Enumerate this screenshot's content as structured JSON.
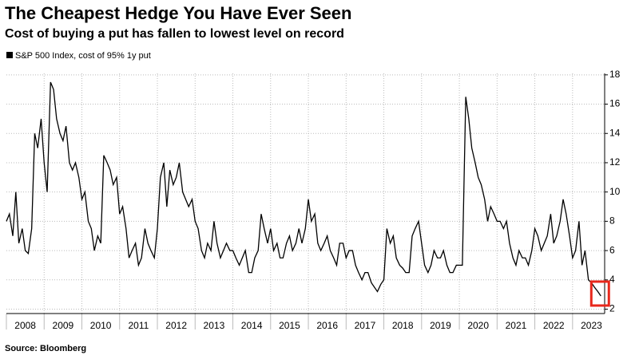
{
  "chart_data": {
    "type": "line",
    "title": "The Cheapest Hedge You Have Ever Seen",
    "subtitle": "Cost of buying a put has fallen to lowest level on record",
    "source": "Source: Bloomberg",
    "x": [
      2008.0,
      2008.08,
      2008.17,
      2008.25,
      2008.33,
      2008.42,
      2008.5,
      2008.58,
      2008.67,
      2008.75,
      2008.83,
      2008.92,
      2009.0,
      2009.08,
      2009.17,
      2009.25,
      2009.33,
      2009.42,
      2009.5,
      2009.58,
      2009.67,
      2009.75,
      2009.83,
      2009.92,
      2010.0,
      2010.08,
      2010.17,
      2010.25,
      2010.33,
      2010.42,
      2010.5,
      2010.58,
      2010.67,
      2010.75,
      2010.83,
      2010.92,
      2011.0,
      2011.08,
      2011.17,
      2011.25,
      2011.33,
      2011.42,
      2011.5,
      2011.58,
      2011.67,
      2011.75,
      2011.83,
      2011.92,
      2012.0,
      2012.08,
      2012.17,
      2012.25,
      2012.33,
      2012.42,
      2012.5,
      2012.58,
      2012.67,
      2012.75,
      2012.83,
      2012.92,
      2013.0,
      2013.08,
      2013.17,
      2013.25,
      2013.33,
      2013.42,
      2013.5,
      2013.58,
      2013.67,
      2013.75,
      2013.83,
      2013.92,
      2014.0,
      2014.08,
      2014.17,
      2014.25,
      2014.33,
      2014.42,
      2014.5,
      2014.58,
      2014.67,
      2014.75,
      2014.83,
      2014.92,
      2015.0,
      2015.08,
      2015.17,
      2015.25,
      2015.33,
      2015.42,
      2015.5,
      2015.58,
      2015.67,
      2015.75,
      2015.83,
      2015.92,
      2016.0,
      2016.08,
      2016.17,
      2016.25,
      2016.33,
      2016.42,
      2016.5,
      2016.58,
      2016.67,
      2016.75,
      2016.83,
      2016.92,
      2017.0,
      2017.08,
      2017.17,
      2017.25,
      2017.33,
      2017.42,
      2017.5,
      2017.58,
      2017.67,
      2017.75,
      2017.83,
      2017.92,
      2018.0,
      2018.08,
      2018.17,
      2018.25,
      2018.33,
      2018.42,
      2018.5,
      2018.58,
      2018.67,
      2018.75,
      2018.83,
      2018.92,
      2019.0,
      2019.08,
      2019.17,
      2019.25,
      2019.33,
      2019.42,
      2019.5,
      2019.58,
      2019.67,
      2019.75,
      2019.83,
      2019.92,
      2020.0,
      2020.08,
      2020.17,
      2020.25,
      2020.33,
      2020.42,
      2020.5,
      2020.58,
      2020.67,
      2020.75,
      2020.83,
      2020.92,
      2021.0,
      2021.08,
      2021.17,
      2021.25,
      2021.33,
      2021.42,
      2021.5,
      2021.58,
      2021.67,
      2021.75,
      2021.83,
      2021.92,
      2022.0,
      2022.08,
      2022.17,
      2022.25,
      2022.33,
      2022.42,
      2022.5,
      2022.58,
      2022.67,
      2022.75,
      2022.83,
      2022.92,
      2023.0,
      2023.08,
      2023.17,
      2023.25,
      2023.33,
      2023.42,
      2023.5,
      2023.58,
      2023.67,
      2023.75
    ],
    "series": [
      {
        "name": "S&P 500 Index, cost of 95% 1y put",
        "color": "#000000",
        "values": [
          8.0,
          8.5,
          7.0,
          10.0,
          6.5,
          7.5,
          6.0,
          5.8,
          7.5,
          14.0,
          13.0,
          15.0,
          12.0,
          10.0,
          17.5,
          17.0,
          15.0,
          14.0,
          13.5,
          14.5,
          12.0,
          11.5,
          12.0,
          11.0,
          9.5,
          10.0,
          8.0,
          7.5,
          6.0,
          7.0,
          6.5,
          12.5,
          12.0,
          11.5,
          10.5,
          11.0,
          8.5,
          9.0,
          7.5,
          5.5,
          6.0,
          6.5,
          5.0,
          5.5,
          7.5,
          6.5,
          6.0,
          5.5,
          7.5,
          11.0,
          12.0,
          9.0,
          11.5,
          10.5,
          11.0,
          12.0,
          10.0,
          9.5,
          9.0,
          9.5,
          8.0,
          7.5,
          6.0,
          5.5,
          6.5,
          6.0,
          8.0,
          6.5,
          5.5,
          6.0,
          6.5,
          6.0,
          6.0,
          5.5,
          5.0,
          5.5,
          6.0,
          4.5,
          4.5,
          5.5,
          6.0,
          8.5,
          7.5,
          6.5,
          7.5,
          6.0,
          6.5,
          5.5,
          5.5,
          6.5,
          7.0,
          6.0,
          6.5,
          7.5,
          6.5,
          7.5,
          9.5,
          8.0,
          8.5,
          6.5,
          6.0,
          6.5,
          7.0,
          6.0,
          5.5,
          5.0,
          6.5,
          6.5,
          5.5,
          6.0,
          6.0,
          5.0,
          4.5,
          4.0,
          4.5,
          4.5,
          3.8,
          3.5,
          3.2,
          3.7,
          4.0,
          7.5,
          6.5,
          7.0,
          5.5,
          5.0,
          4.8,
          4.5,
          4.5,
          7.0,
          7.5,
          8.0,
          6.5,
          5.0,
          4.5,
          5.0,
          6.0,
          5.5,
          5.5,
          6.0,
          5.0,
          4.5,
          4.5,
          5.0,
          5.0,
          5.0,
          16.5,
          15.0,
          13.0,
          12.0,
          11.0,
          10.5,
          9.5,
          8.0,
          9.0,
          8.5,
          8.0,
          8.0,
          7.5,
          8.0,
          6.5,
          5.5,
          5.0,
          6.0,
          5.5,
          5.5,
          5.0,
          6.0,
          7.5,
          7.0,
          6.0,
          6.5,
          7.0,
          8.5,
          6.5,
          7.0,
          8.0,
          9.5,
          8.5,
          7.0,
          5.5,
          6.0,
          8.0,
          5.0,
          6.0,
          4.0,
          3.8,
          3.5,
          3.2,
          2.9
        ]
      }
    ],
    "xlim": [
      2008.0,
      2023.85
    ],
    "xticks": [
      2008,
      2009,
      2010,
      2011,
      2012,
      2013,
      2014,
      2015,
      2016,
      2017,
      2018,
      2019,
      2020,
      2021,
      2022,
      2023
    ],
    "ylim": [
      1.7,
      18.1
    ],
    "yticks": [
      2,
      4,
      6,
      8,
      10,
      12,
      14,
      16,
      18
    ],
    "grid": true,
    "highlight_color": "#e8271b"
  }
}
